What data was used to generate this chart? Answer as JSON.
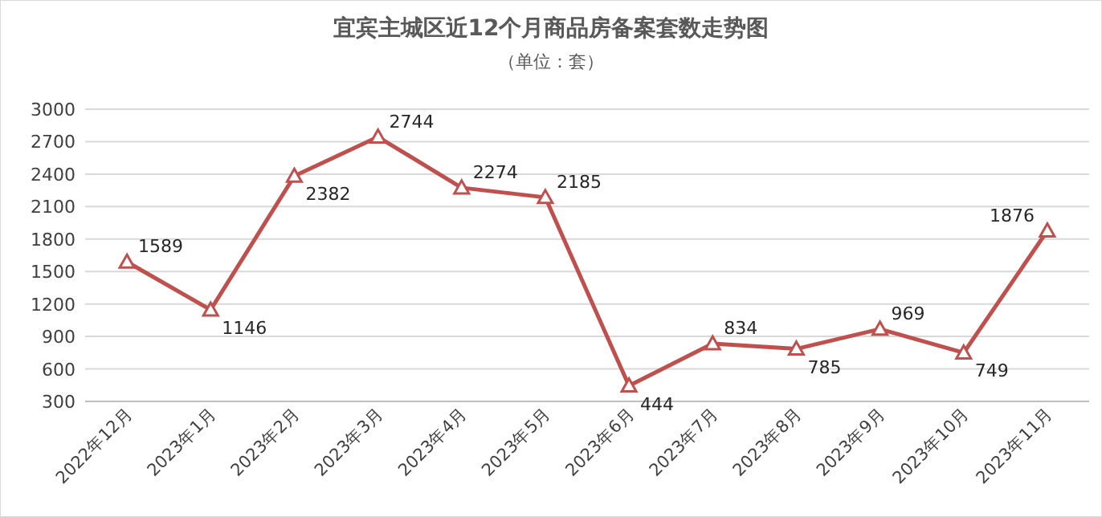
{
  "chart_data": {
    "type": "line",
    "title": "宜宾主城区近12个月商品房备案套数走势图",
    "subtitle": "（单位：套）",
    "categories": [
      "2022年12月",
      "2023年1月",
      "2023年2月",
      "2023年3月",
      "2023年4月",
      "2023年5月",
      "2023年6月",
      "2023年7月",
      "2023年8月",
      "2023年9月",
      "2023年10月",
      "2023年11月"
    ],
    "series": [
      {
        "color": "#c0504d",
        "values": [
          1589,
          1146,
          2382,
          2744,
          2274,
          2185,
          444,
          834,
          785,
          969,
          749,
          1876
        ]
      }
    ],
    "ylim": [
      300,
      3000
    ],
    "yticks": [
      300,
      600,
      900,
      1200,
      1500,
      1800,
      2100,
      2400,
      2700,
      3000
    ],
    "grid": "y",
    "marker": "triangle",
    "line_style": "solid",
    "data_labels": true
  }
}
